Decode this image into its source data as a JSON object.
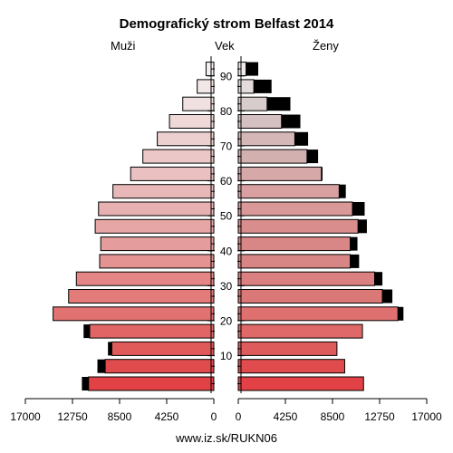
{
  "chart_data": {
    "type": "bar",
    "title": "Demografický strom Belfast 2014",
    "left_label": "Muži",
    "center_label": "Vek",
    "right_label": "Ženy",
    "footer": "www.iz.sk/RUKN06",
    "age_groups": [
      "0-4",
      "5-9",
      "10-14",
      "15-19",
      "20-24",
      "25-29",
      "30-34",
      "35-39",
      "40-44",
      "45-49",
      "50-54",
      "55-59",
      "60-64",
      "65-69",
      "70-74",
      "75-79",
      "80-84",
      "85-89",
      "90+"
    ],
    "age_tick_labels": [
      "10",
      "20",
      "30",
      "40",
      "50",
      "60",
      "70",
      "80",
      "90"
    ],
    "age_tick_values": [
      10,
      20,
      30,
      40,
      50,
      60,
      70,
      80,
      90
    ],
    "x_tick_labels_left": [
      "17000",
      "12750",
      "8500",
      "4250",
      "0"
    ],
    "x_tick_labels_right": [
      "0",
      "4250",
      "8500",
      "12750",
      "17000"
    ],
    "x_tick_values": [
      17000,
      12750,
      8500,
      4250,
      0
    ],
    "xlim": [
      0,
      17000
    ],
    "series": [
      {
        "name": "Muži",
        "values": [
          11300,
          9800,
          9200,
          11200,
          14500,
          13100,
          12400,
          10300,
          10200,
          10700,
          10400,
          9100,
          7500,
          6400,
          5100,
          4000,
          2800,
          1500,
          700
        ],
        "black_excess": [
          600,
          700,
          350,
          550,
          0,
          0,
          0,
          0,
          0,
          0,
          0,
          0,
          0,
          0,
          0,
          0,
          0,
          0,
          0
        ],
        "colors": [
          "#e24245",
          "#e04c4d",
          "#e05a5a",
          "#e16565",
          "#e27171",
          "#e37b7b",
          "#e48686",
          "#e49292",
          "#e59c9c",
          "#e6a6a6",
          "#e7b1b1",
          "#e8b7b7",
          "#eac0c0",
          "#ebc7c7",
          "#ecd0d0",
          "#eed8d8",
          "#f0e0e0",
          "#f2e7e7",
          "#f4eeee"
        ]
      },
      {
        "name": "Ženy",
        "values": [
          11300,
          9600,
          8900,
          11200,
          14400,
          13000,
          12300,
          10100,
          10100,
          10800,
          10300,
          9100,
          7500,
          6200,
          5100,
          3900,
          2600,
          1400,
          700
        ],
        "black_excess": [
          0,
          0,
          0,
          0,
          500,
          900,
          700,
          800,
          650,
          800,
          1100,
          600,
          100,
          1000,
          1200,
          1700,
          2100,
          1600,
          1100
        ],
        "colors": [
          "#e24245",
          "#e04c4d",
          "#de5b5b",
          "#df6868",
          "#de7070",
          "#da7777",
          "#db8080",
          "#d88585",
          "#d98686",
          "#da8d8d",
          "#da9999",
          "#d8a0a0",
          "#d7a8a8",
          "#d3b0b0",
          "#d5b7b7",
          "#d4c0c0",
          "#d9cccc",
          "#e4dcdc",
          "#eeeaea"
        ]
      }
    ]
  }
}
